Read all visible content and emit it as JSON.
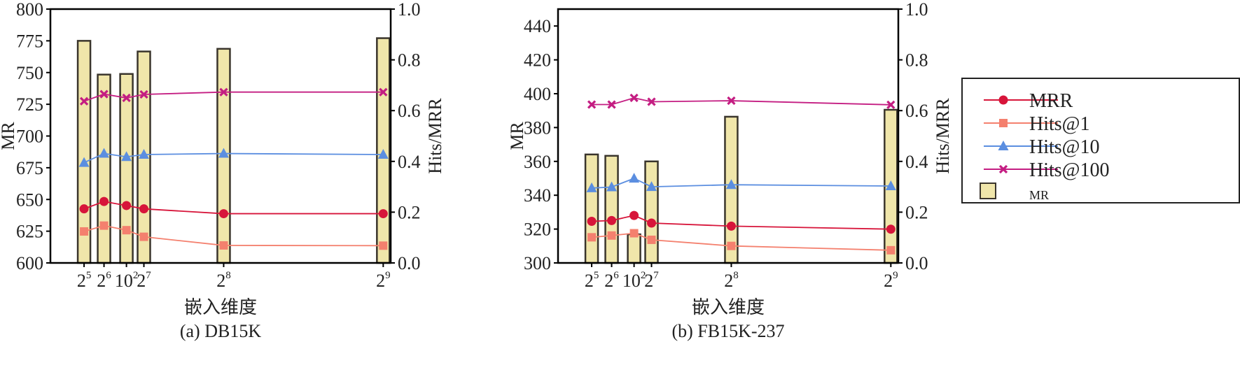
{
  "colors": {
    "MRR": "#d7153a",
    "Hits@1": "#f4806e",
    "Hits@10": "#5b8ee0",
    "Hits@100": "#c41d82",
    "bar_fill": "#f0e6aa",
    "bar_edge": "#3a352c"
  },
  "legend": {
    "placement": "right",
    "entries": [
      "MRR",
      "Hits@1",
      "Hits@10",
      "Hits@100",
      "MR"
    ]
  },
  "chart_data": [
    {
      "type": "bar+line",
      "title": "(a) DB15K",
      "xlabel": "嵌入维度",
      "ylabel": "MR",
      "y2label": "Hits/MRR",
      "x": [
        32,
        64,
        100,
        128,
        256,
        512
      ],
      "x_tick_base": [
        "2",
        "2",
        "10",
        "2",
        "2",
        "2"
      ],
      "x_tick_exp": [
        "5",
        "6",
        "2",
        "7",
        "8",
        "9"
      ],
      "xlim": [
        -22,
        524
      ],
      "ylim": [
        600,
        800
      ],
      "yticks": [
        "600",
        "625",
        "650",
        "675",
        "700",
        "725",
        "750",
        "775",
        "800"
      ],
      "y2lim": [
        0,
        1
      ],
      "y2ticks": [
        "0.0",
        "0.2",
        "0.4",
        "0.6",
        "0.8",
        "1.0"
      ],
      "bars": {
        "name": "MR",
        "values": [
          775,
          748.4,
          748.9,
          766.6,
          768.7,
          777.1
        ]
      },
      "series": [
        {
          "name": "MRR",
          "values": [
            0.213,
            0.242,
            0.226,
            0.213,
            0.194,
            0.194
          ]
        },
        {
          "name": "Hits@1",
          "values": [
            0.124,
            0.147,
            0.129,
            0.103,
            0.069,
            0.068
          ]
        },
        {
          "name": "Hits@10",
          "values": [
            0.395,
            0.431,
            0.418,
            0.427,
            0.431,
            0.427
          ]
        },
        {
          "name": "Hits@100",
          "values": [
            0.637,
            0.665,
            0.65,
            0.664,
            0.673,
            0.673
          ]
        }
      ]
    },
    {
      "type": "bar+line",
      "title": "(b) FB15K-237",
      "xlabel": "嵌入维度",
      "ylabel": "MR",
      "y2label": "Hits/MRR",
      "x": [
        32,
        64,
        100,
        128,
        256,
        512
      ],
      "x_tick_base": [
        "2",
        "2",
        "10",
        "2",
        "2",
        "2"
      ],
      "x_tick_exp": [
        "5",
        "6",
        "2",
        "7",
        "8",
        "9"
      ],
      "xlim": [
        -22,
        524
      ],
      "ylim": [
        300,
        450
      ],
      "yticks": [
        "300",
        "320",
        "340",
        "360",
        "380",
        "400",
        "420",
        "440"
      ],
      "y2lim": [
        0,
        1
      ],
      "y2ticks": [
        "0.0",
        "0.2",
        "0.4",
        "0.6",
        "0.8",
        "1.0"
      ],
      "bars": {
        "name": "MR",
        "values": [
          364.1,
          363.3,
          316.9,
          360.0,
          386.4,
          390.5
        ]
      },
      "series": [
        {
          "name": "MRR",
          "values": [
            0.164,
            0.167,
            0.187,
            0.157,
            0.145,
            0.133
          ]
        },
        {
          "name": "Hits@1",
          "values": [
            0.101,
            0.108,
            0.117,
            0.091,
            0.067,
            0.05
          ]
        },
        {
          "name": "Hits@10",
          "values": [
            0.295,
            0.299,
            0.333,
            0.3,
            0.308,
            0.303
          ]
        },
        {
          "name": "Hits@100",
          "values": [
            0.624,
            0.624,
            0.65,
            0.635,
            0.639,
            0.623
          ]
        }
      ]
    }
  ]
}
